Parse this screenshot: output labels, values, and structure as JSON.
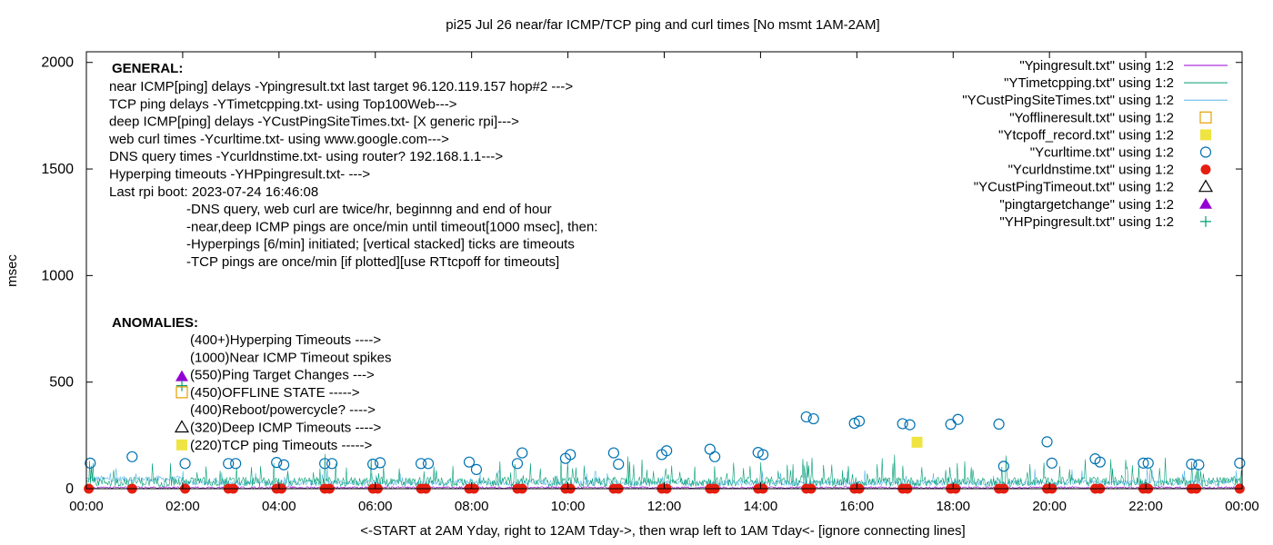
{
  "chart_data": {
    "type": "scatter",
    "title": "pi25 Jul 26  near/far ICMP/TCP ping and curl times [No msmt 1AM-2AM]",
    "xlabel": "<-START at 2AM Yday, right to 12AM Tday->, then wrap left to 1AM Tday<- [ignore connecting lines]",
    "ylabel": "msec",
    "xlim": [
      0,
      24
    ],
    "ylim": [
      0,
      2050
    ],
    "x_ticks": [
      "00:00",
      "02:00",
      "04:00",
      "06:00",
      "08:00",
      "10:00",
      "12:00",
      "14:00",
      "16:00",
      "18:00",
      "20:00",
      "22:00",
      "00:00"
    ],
    "y_ticks": [
      0,
      500,
      1000,
      1500,
      2000
    ],
    "grid": false,
    "legend_position": "top-right",
    "legend": [
      {
        "label": "\"Ypingresult.txt\" using 1:2",
        "marker": "line",
        "color": "#9400d3"
      },
      {
        "label": "\"YTimetcpping.txt\" using 1:2",
        "marker": "line",
        "color": "#009e73"
      },
      {
        "label": "\"YCustPingSiteTimes.txt\" using 1:2",
        "marker": "line",
        "color": "#56b4e9"
      },
      {
        "label": "\"Yofflineresult.txt\" using 1:2",
        "marker": "open-square",
        "color": "#e69f00"
      },
      {
        "label": "\"Ytcpoff_record.txt\" using 1:2",
        "marker": "filled-square",
        "color": "#f0e442"
      },
      {
        "label": "\"Ycurltime.txt\" using 1:2",
        "marker": "open-circle",
        "color": "#0072b2"
      },
      {
        "label": "\"Ycurldnstime.txt\" using 1:2",
        "marker": "filled-circle",
        "color": "#e51e10"
      },
      {
        "label": "\"YCustPingTimeout.txt\" using 1:2",
        "marker": "open-triangle",
        "color": "#000000"
      },
      {
        "label": "\"pingtargetchange\" using 1:2",
        "marker": "filled-triangle",
        "color": "#9400d3"
      },
      {
        "label": "\"YHPpingresult.txt\" using 1:2",
        "marker": "plus",
        "color": "#009e73"
      }
    ],
    "general_heading": "GENERAL:",
    "general_lines": [
      "near ICMP[ping] delays -Ypingresult.txt last target 96.120.119.157 hop#2 --->",
      "TCP ping delays -YTimetcpping.txt- using Top100Web--->",
      "deep ICMP[ping] delays -YCustPingSiteTimes.txt- [X generic rpi]--->",
      "web curl times -Ycurltime.txt- using www.google.com--->",
      "DNS query times -Ycurldnstime.txt- using router? 192.168.1.1--->",
      "Hyperping timeouts -YHPpingresult.txt- --->",
      "Last rpi boot: 2023-07-24 16:46:08"
    ],
    "notes": [
      "-DNS query, web curl are twice/hr, beginnng and end of hour",
      "-near,deep ICMP pings are once/min until timeout[1000 msec], then:",
      "  -Hyperpings [6/min] initiated; [vertical stacked] ticks are timeouts",
      "-TCP pings are once/min [if plotted][use RTtcpoff for timeouts]"
    ],
    "anomalies_heading": "ANOMALIES:",
    "anomalies": [
      {
        "marker": "none",
        "label": "(400+)Hyperping Timeouts ---->"
      },
      {
        "marker": "none",
        "label": "(1000)Near ICMP Timeout spikes"
      },
      {
        "marker": "filled-triangle-plus",
        "label": "(550)Ping Target Changes --->"
      },
      {
        "marker": "open-square",
        "label": "(450)OFFLINE STATE ----->"
      },
      {
        "marker": "none",
        "label": "(400)Reboot/powercycle? ---->"
      },
      {
        "marker": "open-triangle",
        "label": "(320)Deep ICMP Timeouts ---->"
      },
      {
        "marker": "filled-square",
        "label": "(220)TCP ping Timeouts ----->"
      }
    ],
    "series": [
      {
        "name": "\"Ycurltime.txt\" using 1:2",
        "marker": "open-circle",
        "points": [
          [
            0.08,
            120
          ],
          [
            0.95,
            150
          ],
          [
            2.05,
            118
          ],
          [
            2.95,
            118
          ],
          [
            3.1,
            118
          ],
          [
            3.95,
            123
          ],
          [
            4.1,
            112
          ],
          [
            4.95,
            118
          ],
          [
            5.1,
            118
          ],
          [
            5.95,
            115
          ],
          [
            6.1,
            122
          ],
          [
            6.95,
            118
          ],
          [
            7.1,
            118
          ],
          [
            7.95,
            125
          ],
          [
            8.1,
            90
          ],
          [
            8.95,
            118
          ],
          [
            9.05,
            168
          ],
          [
            9.95,
            142
          ],
          [
            10.05,
            160
          ],
          [
            10.95,
            168
          ],
          [
            11.05,
            115
          ],
          [
            11.95,
            160
          ],
          [
            12.05,
            178
          ],
          [
            12.95,
            185
          ],
          [
            13.05,
            150
          ],
          [
            13.95,
            170
          ],
          [
            14.05,
            160
          ],
          [
            14.95,
            337
          ],
          [
            15.1,
            328
          ],
          [
            15.95,
            307
          ],
          [
            16.05,
            317
          ],
          [
            16.95,
            305
          ],
          [
            17.1,
            300
          ],
          [
            17.95,
            302
          ],
          [
            18.1,
            325
          ],
          [
            18.95,
            303
          ],
          [
            19.05,
            105
          ],
          [
            19.95,
            220
          ],
          [
            20.05,
            120
          ],
          [
            20.95,
            140
          ],
          [
            21.05,
            125
          ],
          [
            21.95,
            120
          ],
          [
            22.05,
            120
          ],
          [
            22.95,
            115
          ],
          [
            23.1,
            112
          ],
          [
            23.95,
            120
          ]
        ]
      },
      {
        "name": "\"Ycurldnstime.txt\" using 1:2",
        "marker": "filled-circle",
        "points": [
          [
            0.05,
            0
          ],
          [
            0.95,
            0
          ],
          [
            2.05,
            0
          ],
          [
            2.95,
            0
          ],
          [
            3.05,
            0
          ],
          [
            3.95,
            0
          ],
          [
            4.05,
            0
          ],
          [
            4.95,
            0
          ],
          [
            5.05,
            0
          ],
          [
            5.95,
            0
          ],
          [
            6.05,
            0
          ],
          [
            6.95,
            0
          ],
          [
            7.05,
            0
          ],
          [
            7.95,
            0
          ],
          [
            8.05,
            0
          ],
          [
            8.95,
            0
          ],
          [
            9.05,
            0
          ],
          [
            9.95,
            0
          ],
          [
            10.05,
            0
          ],
          [
            10.95,
            0
          ],
          [
            11.05,
            0
          ],
          [
            11.95,
            0
          ],
          [
            12.05,
            0
          ],
          [
            12.95,
            0
          ],
          [
            13.05,
            0
          ],
          [
            13.95,
            0
          ],
          [
            14.05,
            0
          ],
          [
            14.95,
            0
          ],
          [
            15.05,
            0
          ],
          [
            15.95,
            0
          ],
          [
            16.05,
            0
          ],
          [
            16.95,
            0
          ],
          [
            17.05,
            0
          ],
          [
            17.95,
            0
          ],
          [
            18.05,
            0
          ],
          [
            18.95,
            0
          ],
          [
            19.05,
            0
          ],
          [
            19.95,
            0
          ],
          [
            20.05,
            0
          ],
          [
            20.95,
            0
          ],
          [
            21.05,
            0
          ],
          [
            21.95,
            0
          ],
          [
            22.05,
            0
          ],
          [
            22.95,
            0
          ],
          [
            23.05,
            0
          ],
          [
            23.95,
            0
          ]
        ]
      },
      {
        "name": "\"Ytcpoff_record.txt\" using 1:2",
        "marker": "filled-square",
        "points": [
          [
            17.25,
            218
          ]
        ]
      },
      {
        "name": "\"YTimetcpping.txt\" using 1:2",
        "marker": "line",
        "summary": "dense once/min trace, typically 10-60 msec with frequent spikes up to about 160 msec across the whole day"
      },
      {
        "name": "\"YCustPingSiteTimes.txt\" using 1:2",
        "marker": "line",
        "summary": "dense once/min trace, roughly 25-60 msec from 00:00 to 02:00 then 15-40 msec with spikes up to about 90 msec"
      },
      {
        "name": "\"Ypingresult.txt\" using 1:2",
        "marker": "line",
        "summary": "near-zero values (about 1-10 msec) across the whole day"
      }
    ]
  }
}
